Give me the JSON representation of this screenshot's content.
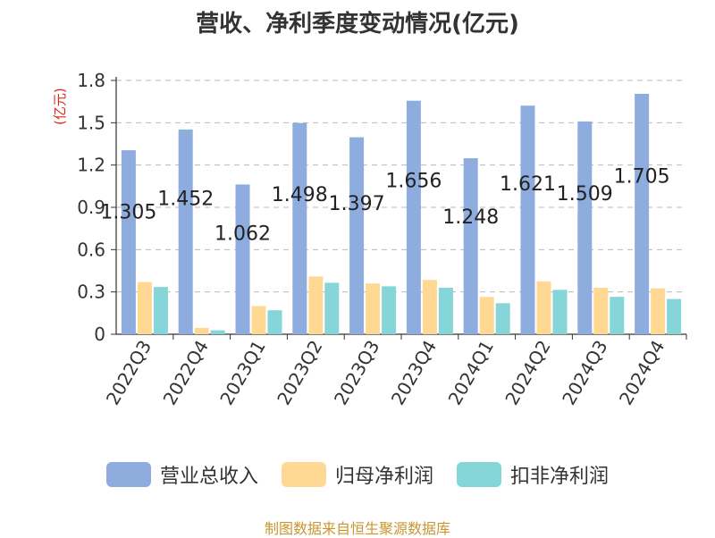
{
  "chart_data": {
    "type": "bar",
    "title": "营收、净利季度变动情况(亿元)",
    "ylabel": "(亿元)",
    "ylim": [
      0,
      1.8
    ],
    "yticks": [
      "0",
      "0.3",
      "0.6",
      "0.9",
      "1.2",
      "1.5",
      "1.8"
    ],
    "grid": true,
    "legend_position": "bottom",
    "categories": [
      "2022Q3",
      "2022Q4",
      "2023Q1",
      "2023Q2",
      "2023Q3",
      "2023Q4",
      "2024Q1",
      "2024Q2",
      "2024Q3",
      "2024Q4"
    ],
    "series": [
      {
        "name": "营业总收入",
        "color": "#8eadde",
        "values": [
          1.305,
          1.452,
          1.062,
          1.498,
          1.397,
          1.656,
          1.248,
          1.621,
          1.509,
          1.705
        ],
        "labels": [
          "1.305",
          "1.452",
          "1.062",
          "1.498",
          "1.397",
          "1.656",
          "1.248",
          "1.621",
          "1.509",
          "1.705"
        ]
      },
      {
        "name": "归母净利润",
        "color": "#ffd993",
        "values": [
          0.37,
          0.045,
          0.2,
          0.41,
          0.36,
          0.385,
          0.265,
          0.375,
          0.33,
          0.325
        ]
      },
      {
        "name": "扣非净利润",
        "color": "#85d5d9",
        "values": [
          0.335,
          0.028,
          0.17,
          0.365,
          0.34,
          0.33,
          0.22,
          0.315,
          0.265,
          0.25
        ]
      }
    ],
    "source": "制图数据来自恒生聚源数据库"
  }
}
